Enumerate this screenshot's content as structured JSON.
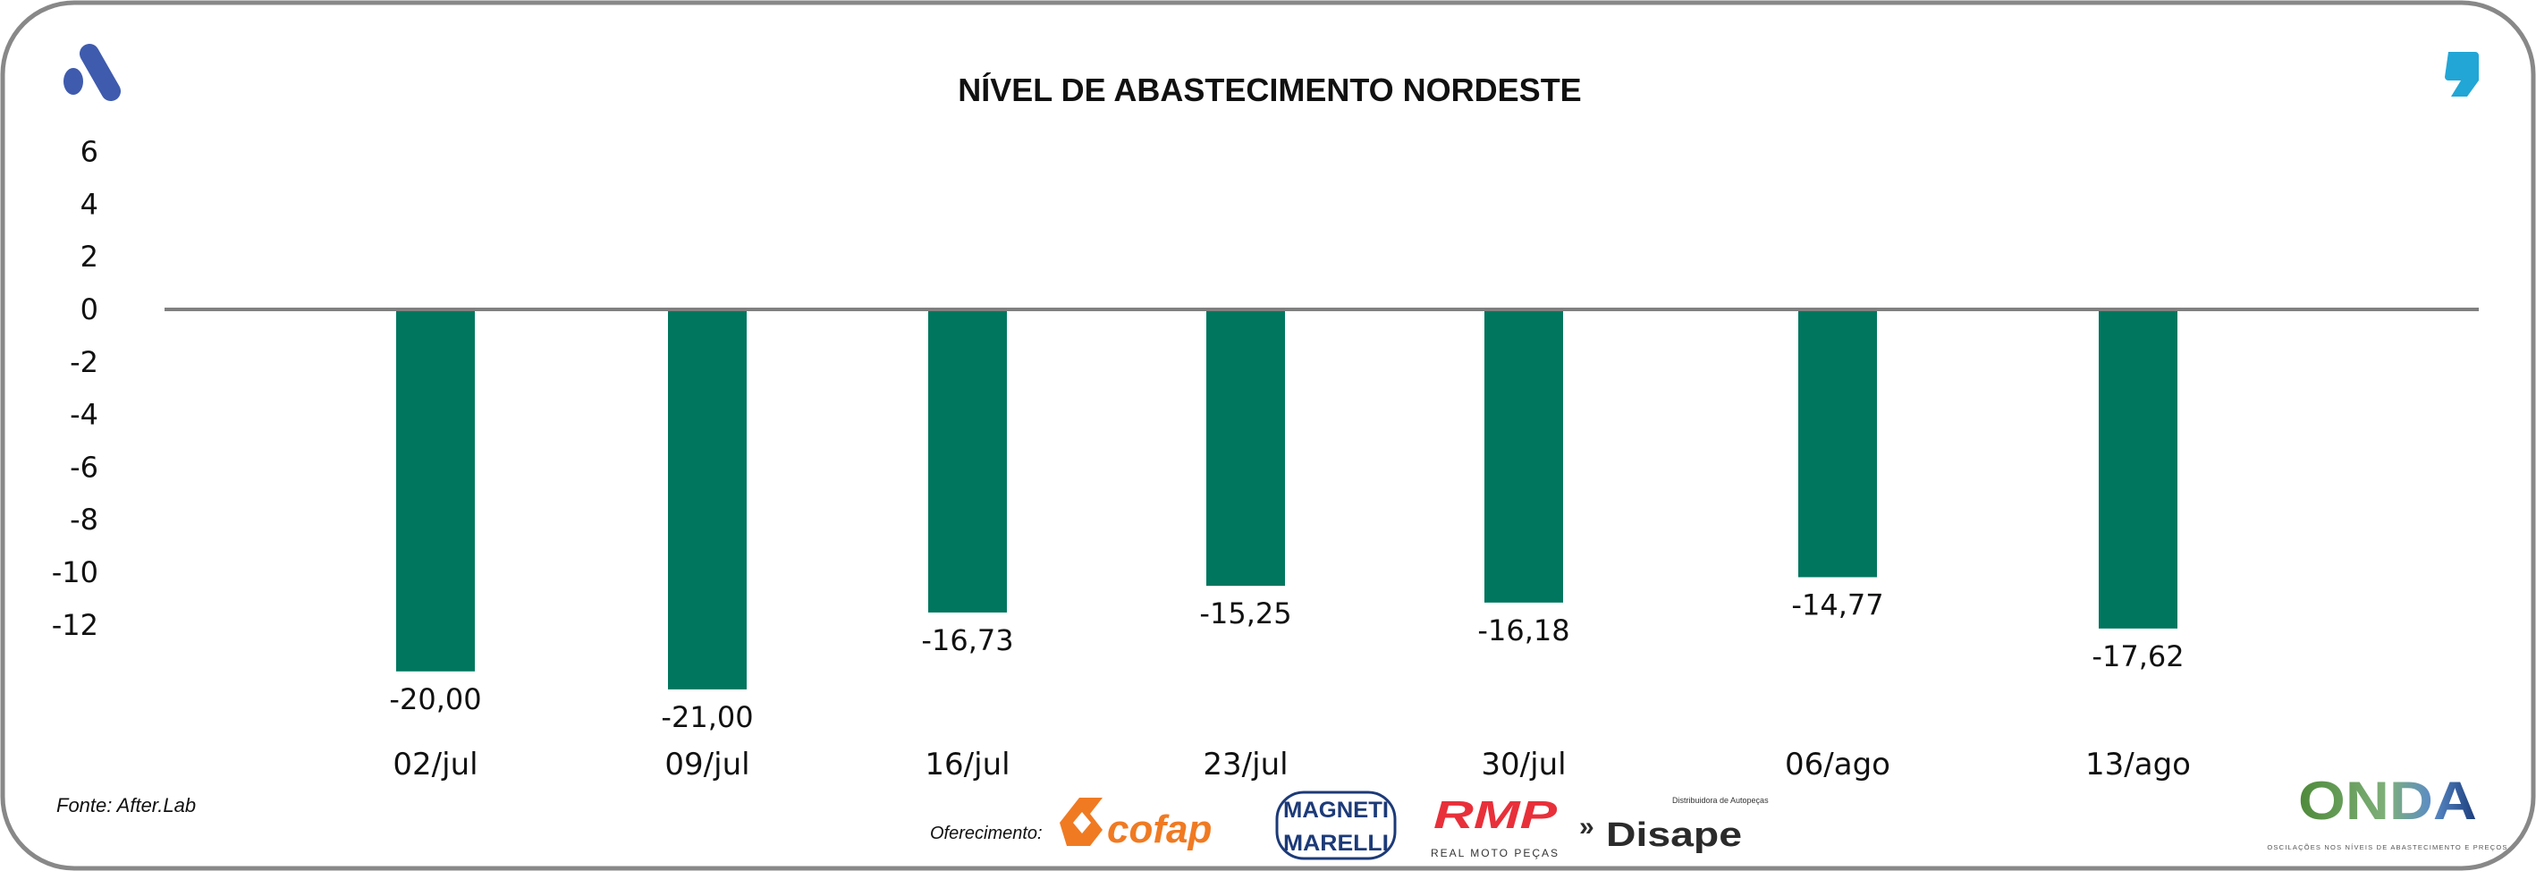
{
  "chart_data": {
    "type": "bar",
    "title": "NÍVEL DE ABASTECIMENTO NORDESTE",
    "xlabel": "",
    "ylabel": "",
    "categories": [
      "02/jul",
      "09/jul",
      "16/jul",
      "23/jul",
      "30/jul",
      "06/ago",
      "13/ago"
    ],
    "values": [
      -20.0,
      -21.0,
      -16.73,
      -15.25,
      -16.18,
      -14.77,
      -17.62
    ],
    "data_labels": [
      "-20,00",
      "-21,00",
      "-16,73",
      "-15,25",
      "-16,18",
      "-14,77",
      "-17,62"
    ],
    "ylim": [
      -12,
      6
    ],
    "yticks": [
      6,
      4,
      2,
      0,
      -2,
      -4,
      -6,
      -8,
      -10,
      -12
    ],
    "ytick_labels": [
      "6",
      "4",
      "2",
      "0",
      "-2",
      "-4",
      "-6",
      "-8",
      "-10",
      "-12"
    ],
    "grid": false,
    "legend": "none",
    "bar_color": "#00765F",
    "axis_color": "#808080"
  },
  "footer": {
    "source": "Fonte: After.Lab",
    "sponsor_label": "Oferecimento:",
    "sponsors": [
      "cofap",
      "MAGNETI MARELLI",
      "RMP",
      "REAL MOTO PEÇAS",
      "Disape",
      "Distribuidora de Autopeças"
    ],
    "brand": "ONDA",
    "brand_tagline": "OSCILAÇÕES NOS NÍVEIS DE ABASTECIMENTO E PREÇOS"
  },
  "colors": {
    "frame": "#888888",
    "logo_left": "#3F5BAE",
    "logo_right": "#22A6D6",
    "cofap": "#F07A22",
    "magneti": "#1C3A78",
    "rmp": "#E8303A",
    "disape": "#2B2B2B"
  }
}
